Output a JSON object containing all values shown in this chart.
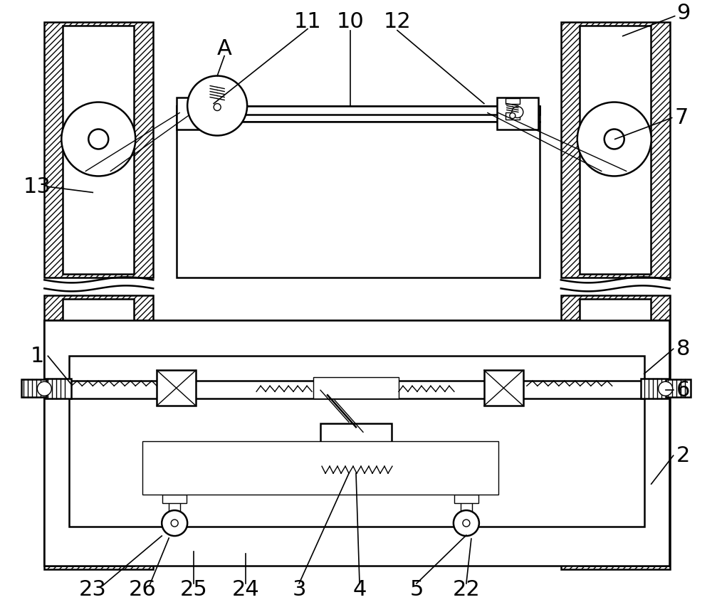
{
  "bg_color": "#ffffff",
  "line_color": "#000000",
  "font_size": 22,
  "lw_main": 1.8,
  "lw_thin": 1.0
}
